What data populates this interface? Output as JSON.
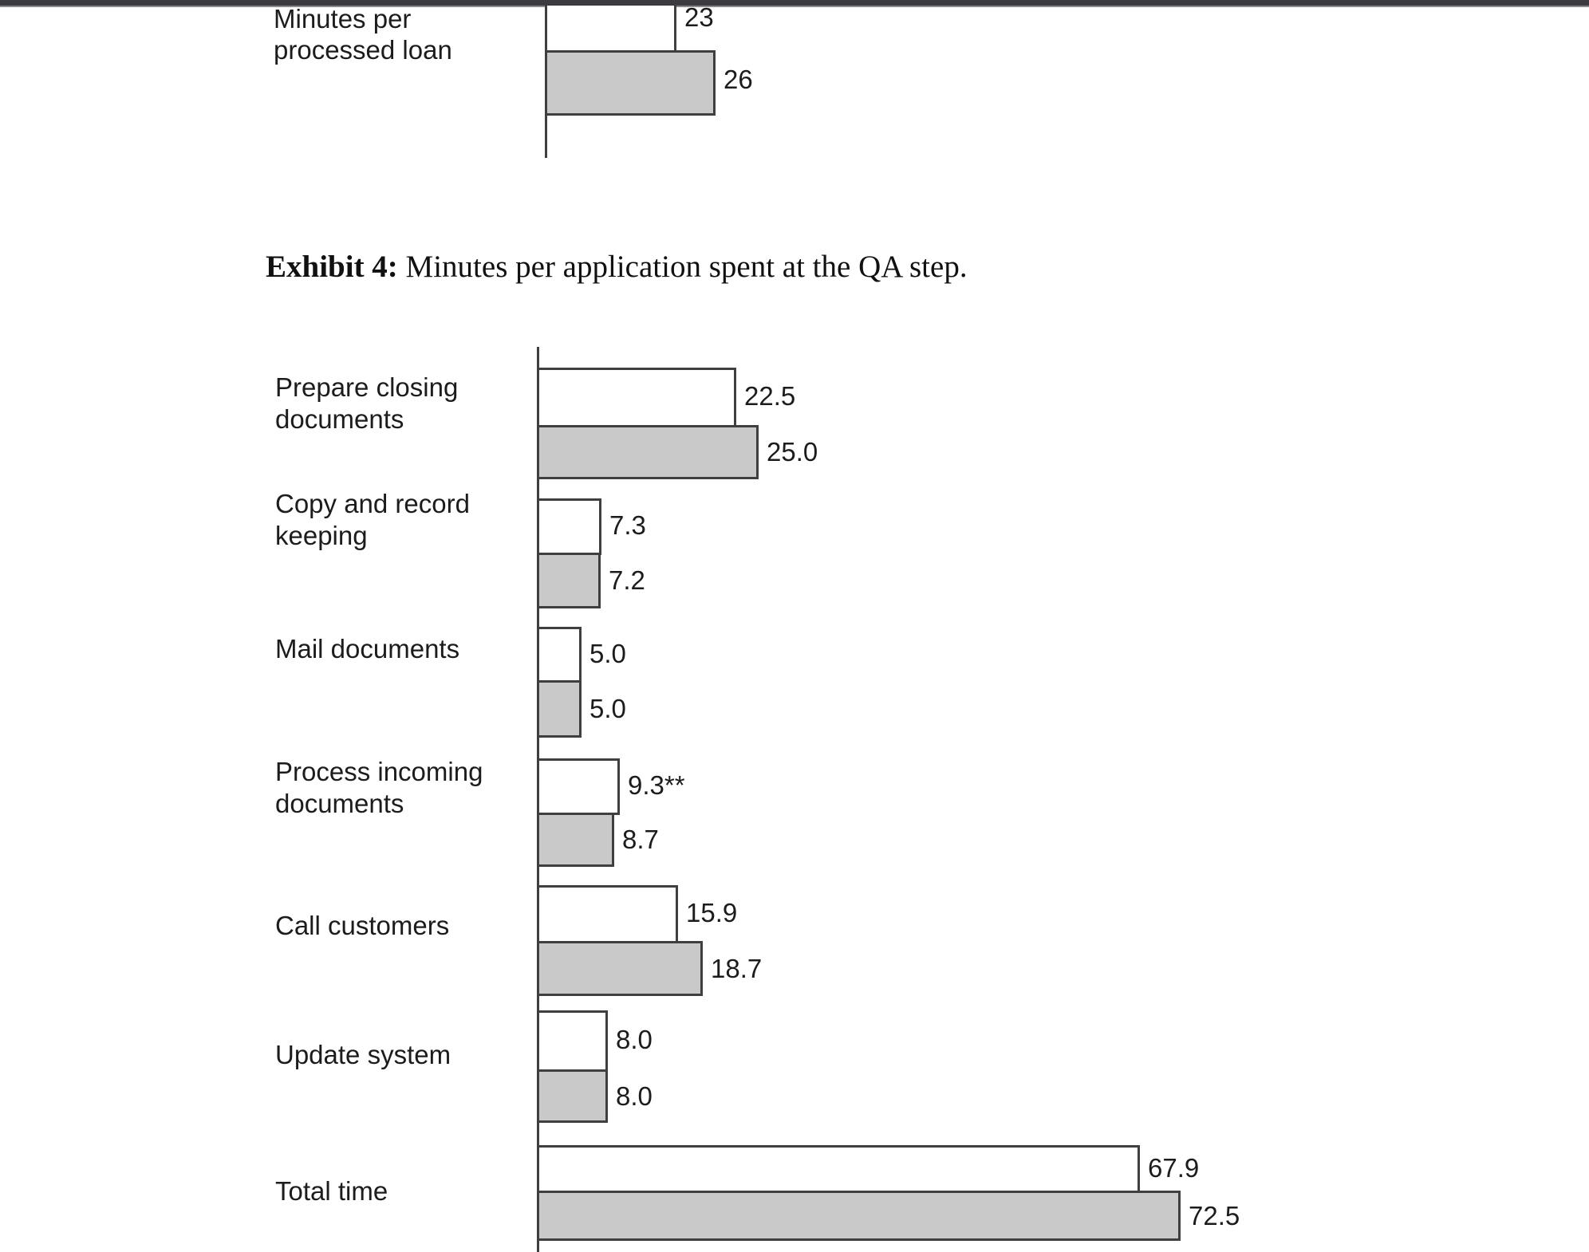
{
  "window": {
    "top_edge_color": "#3b3b40"
  },
  "caption": {
    "bold": "Exhibit 4:",
    "text": " Minutes per application spent at the QA step."
  },
  "colors": {
    "bar_unshaded_fill": "#ffffff",
    "bar_shaded_fill": "#c9c9c9",
    "bar_border": "#3f3f3f",
    "text": "#1c1c1c"
  },
  "chart_data": [
    {
      "type": "bar",
      "orientation": "horizontal",
      "title": "",
      "categories": [
        "Minutes per\nprocessed loan"
      ],
      "series": [
        {
          "name": "unshaded",
          "values": [
            23
          ],
          "labels": [
            "23"
          ]
        },
        {
          "name": "shaded",
          "values": [
            26
          ],
          "labels": [
            "26"
          ]
        }
      ],
      "legend": "none",
      "grid": false,
      "clipped_at_top": true
    },
    {
      "type": "bar",
      "orientation": "horizontal",
      "title": "Exhibit 4: Minutes per application spent at the QA step.",
      "categories": [
        "Prepare closing\ndocuments",
        "Copy and record\nkeeping",
        "Mail documents",
        "Process incoming\ndocuments",
        "Call customers",
        "Update system",
        "Total time"
      ],
      "series": [
        {
          "name": "unshaded",
          "values": [
            22.5,
            7.3,
            5.0,
            9.3,
            15.9,
            8.0,
            67.9
          ],
          "labels": [
            "22.5",
            "7.3",
            "5.0",
            "9.3**",
            "15.9",
            "8.0",
            "67.9"
          ]
        },
        {
          "name": "shaded",
          "values": [
            25.0,
            7.2,
            5.0,
            8.7,
            18.7,
            8.0,
            72.5
          ],
          "labels": [
            "25.0",
            "7.2",
            "5.0",
            "8.7",
            "18.7",
            "8.0",
            "72.5"
          ]
        }
      ],
      "legend": "none",
      "grid": false
    }
  ]
}
